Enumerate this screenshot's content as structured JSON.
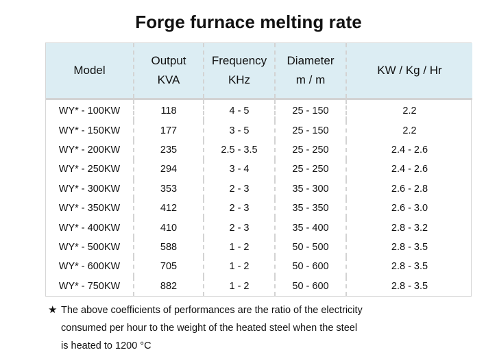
{
  "title": "Forge furnace melting rate",
  "table": {
    "headers": [
      {
        "line1": "Model",
        "line2": ""
      },
      {
        "line1": "Output",
        "line2": "KVA"
      },
      {
        "line1": "Frequency",
        "line2": "KHz"
      },
      {
        "line1": "Diameter",
        "line2": "m / m"
      },
      {
        "line1": "KW / Kg / Hr",
        "line2": ""
      }
    ],
    "header_bg": "#dcedf3",
    "rows": [
      [
        "WY* - 100KW",
        "118",
        "4 - 5",
        "25 - 150",
        "2.2"
      ],
      [
        "WY* - 150KW",
        "177",
        "3 - 5",
        "25 - 150",
        "2.2"
      ],
      [
        "WY* - 200KW",
        "235",
        "2.5 - 3.5",
        "25 - 250",
        "2.4 - 2.6"
      ],
      [
        "WY* - 250KW",
        "294",
        "3 - 4",
        "25 - 250",
        "2.4 - 2.6"
      ],
      [
        "WY* - 300KW",
        "353",
        "2 - 3",
        "35 - 300",
        "2.6 - 2.8"
      ],
      [
        "WY* - 350KW",
        "412",
        "2 - 3",
        "35 - 350",
        "2.6 - 3.0"
      ],
      [
        "WY* - 400KW",
        "410",
        "2 - 3",
        "35 - 400",
        "2.8 - 3.2"
      ],
      [
        "WY* - 500KW",
        "588",
        "1 - 2",
        "50 - 500",
        "2.8 - 3.5"
      ],
      [
        "WY* - 600KW",
        "705",
        "1 - 2",
        "50 - 600",
        "2.8 - 3.5"
      ],
      [
        "WY* - 750KW",
        "882",
        "1 - 2",
        "50 - 600",
        "2.8 - 3.5"
      ]
    ]
  },
  "footnote": {
    "marker": "★",
    "lines": [
      "The above coefficients of performances are the ratio of the electricity",
      "consumed per hour to the weight of the heated steel when the steel",
      "is heated to 1200 °C"
    ]
  }
}
